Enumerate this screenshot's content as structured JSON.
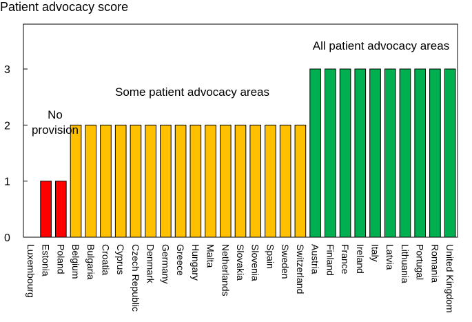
{
  "chart_data": {
    "type": "bar",
    "ylabel": "Patient advocacy score",
    "xlabel": "",
    "ylim": [
      0,
      3.8
    ],
    "yticks": [
      "0",
      "1",
      "2",
      "3"
    ],
    "grid": false,
    "categories": [
      "Luxembourg",
      "Estonia",
      "Poland",
      "Belgium",
      "Bulgaria",
      "Croatia",
      "Cyprus",
      "Czech Republic",
      "Denmark",
      "Germany",
      "Greece",
      "Hungary",
      "Malta",
      "Netherlands",
      "Slovakia",
      "Slovenia",
      "Spain",
      "Sweden",
      "Switzerland",
      "Austria",
      "Finland",
      "France",
      "Ireland",
      "Italy",
      "Latvia",
      "Lithuania",
      "Portugal",
      "Romania",
      "United Kingdom"
    ],
    "values": [
      0,
      1,
      1,
      2,
      2,
      2,
      2,
      2,
      2,
      2,
      2,
      2,
      2,
      2,
      2,
      2,
      2,
      2,
      2,
      3,
      3,
      3,
      3,
      3,
      3,
      3,
      3,
      3,
      3
    ],
    "colors": {
      "0": "#ffffff",
      "1": "#ff0000",
      "2": "#ffc000",
      "3": "#00b050"
    },
    "annotations": [
      {
        "text": "All patient advocacy areas"
      },
      {
        "text": "Some patient advocacy areas"
      },
      {
        "text": "No"
      },
      {
        "text": "provision"
      }
    ]
  }
}
